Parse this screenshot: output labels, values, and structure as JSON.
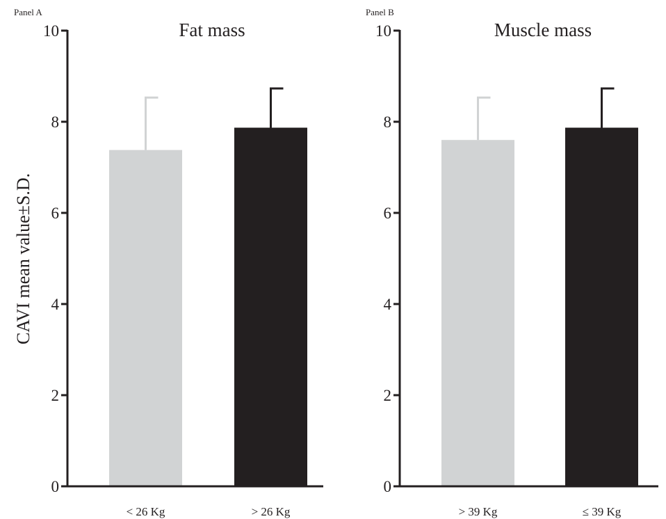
{
  "ylabel": "CAVI mean value±S.D.",
  "colors": {
    "light": "#d1d3d4",
    "dark": "#231f20",
    "axis": "#231f20"
  },
  "chart_data": [
    {
      "type": "bar",
      "panel": "Panel A",
      "title": "Fat mass",
      "categories": [
        "< 26 Kg",
        "> 26 Kg"
      ],
      "values": [
        7.38,
        7.87
      ],
      "errors": [
        1.15,
        0.86
      ],
      "bar_colors": [
        "#d1d3d4",
        "#231f20"
      ],
      "ylim": [
        0,
        10
      ],
      "yticks": [
        0,
        2,
        4,
        6,
        8,
        10
      ]
    },
    {
      "type": "bar",
      "panel": "Panel B",
      "title": "Muscle mass",
      "categories": [
        "> 39 Kg",
        "≤ 39 Kg"
      ],
      "values": [
        7.6,
        7.87
      ],
      "errors": [
        0.93,
        0.86
      ],
      "bar_colors": [
        "#d1d3d4",
        "#231f20"
      ],
      "ylim": [
        0,
        10
      ],
      "yticks": [
        0,
        2,
        4,
        6,
        8,
        10
      ]
    }
  ]
}
